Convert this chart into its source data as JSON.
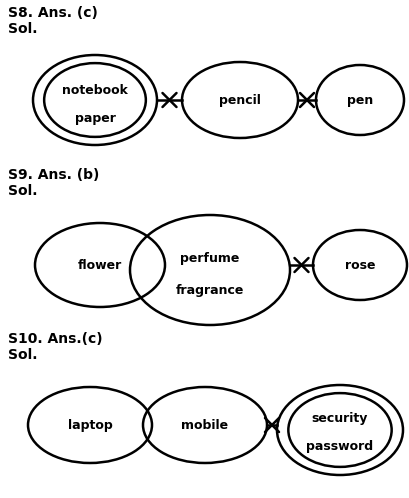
{
  "bg_color": "#ffffff",
  "text_color": "#000000",
  "s8_label": "S8. Ans. (c)",
  "s8_sub": "Sol.",
  "s9_label": "S9. Ans. (b)",
  "s9_sub": "Sol.",
  "s10_label": "S10. Ans.(c)",
  "s10_sub": "Sol.",
  "lw": 1.8,
  "cross_size": 0.013,
  "font_size_label": 10,
  "font_size_ellipse": 9
}
